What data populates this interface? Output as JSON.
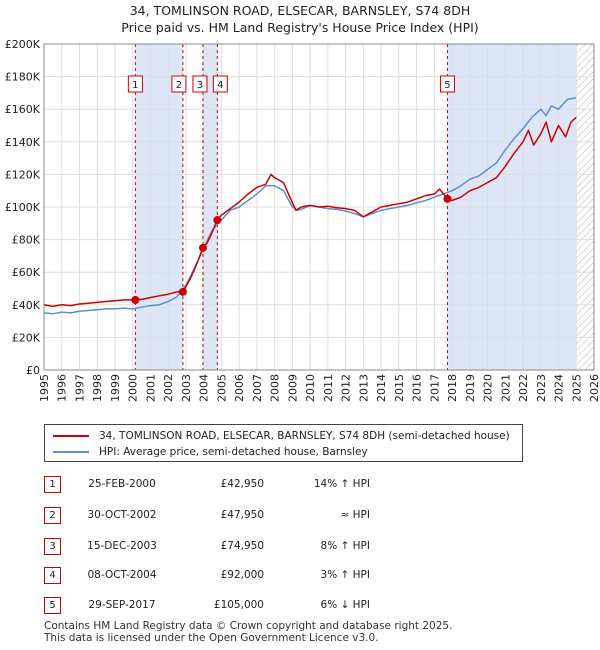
{
  "chart_data": {
    "type": "line",
    "title": "34, TOMLINSON ROAD, ELSECAR, BARNSLEY, S74 8DH",
    "subtitle": "Price paid vs. HM Land Registry's House Price Index (HPI)",
    "xlabel": "",
    "ylabel": "",
    "xlim": [
      1995,
      2026
    ],
    "ylim": [
      0,
      200000
    ],
    "x_ticks": [
      "1995",
      "1996",
      "1997",
      "1998",
      "1999",
      "2000",
      "2001",
      "2002",
      "2003",
      "2004",
      "2005",
      "2006",
      "2007",
      "2008",
      "2009",
      "2010",
      "2011",
      "2012",
      "2013",
      "2014",
      "2015",
      "2016",
      "2017",
      "2018",
      "2019",
      "2020",
      "2021",
      "2022",
      "2023",
      "2024",
      "2025",
      "2026"
    ],
    "y_ticks": [
      "£0",
      "£20K",
      "£40K",
      "£60K",
      "£80K",
      "£100K",
      "£120K",
      "£140K",
      "£160K",
      "£180K",
      "£200K"
    ],
    "grid": true,
    "hatched_future_from": 2025.0,
    "colors": {
      "property": "#cc0000",
      "hpi": "#5b8fd0",
      "band": "#dde6f7",
      "marker": "#cc0000"
    },
    "series": [
      {
        "name": "34, TOMLINSON ROAD, ELSECAR, BARNSLEY, S74 8DH (semi-detached house)",
        "x": [
          1995.0,
          1995.5,
          1996,
          1996.5,
          1997,
          1997.5,
          1998,
          1998.5,
          1999,
          1999.5,
          2000.15,
          2000.6,
          2001,
          2001.5,
          2002,
          2002.5,
          2002.83,
          2003.2,
          2003.5,
          2003.96,
          2004.2,
          2004.5,
          2004.77,
          2005.0,
          2005.5,
          2006,
          2006.5,
          2007,
          2007.5,
          2007.8,
          2008,
          2008.5,
          2008.9,
          2009.2,
          2009.5,
          2010,
          2010.5,
          2011,
          2011.5,
          2012,
          2012.5,
          2013,
          2013.5,
          2014,
          2014.5,
          2015,
          2015.5,
          2016,
          2016.5,
          2017,
          2017.3,
          2017.74,
          2018,
          2018.5,
          2019,
          2019.5,
          2020,
          2020.5,
          2021,
          2021.5,
          2022,
          2022.3,
          2022.6,
          2023,
          2023.3,
          2023.6,
          2024,
          2024.4,
          2024.7,
          2025.0
        ],
        "values": [
          40000,
          39000,
          40000,
          39500,
          40500,
          41000,
          41500,
          42000,
          42500,
          43000,
          42950,
          43500,
          44500,
          45500,
          46500,
          48000,
          47950,
          55000,
          62000,
          74950,
          78000,
          85000,
          92000,
          95000,
          99000,
          103000,
          108000,
          112000,
          114000,
          120000,
          118000,
          115000,
          105000,
          98000,
          100000,
          101000,
          100000,
          100500,
          99500,
          99000,
          98000,
          94000,
          97000,
          100000,
          101000,
          102000,
          103000,
          105000,
          107000,
          108000,
          111000,
          105000,
          104000,
          106000,
          110000,
          112000,
          115000,
          118000,
          125000,
          133000,
          140000,
          147000,
          138000,
          145000,
          152000,
          140000,
          150000,
          143000,
          152000,
          155000
        ]
      },
      {
        "name": "HPI: Average price, semi-detached house, Barnsley",
        "x": [
          1995.0,
          1995.5,
          1996,
          1996.5,
          1997,
          1997.5,
          1998,
          1998.5,
          1999,
          1999.5,
          2000,
          2000.5,
          2001,
          2001.5,
          2002,
          2002.5,
          2003,
          2003.5,
          2004,
          2004.5,
          2005,
          2005.5,
          2006,
          2006.5,
          2007,
          2007.5,
          2008,
          2008.5,
          2009,
          2009.3,
          2009.6,
          2010,
          2010.5,
          2011,
          2011.5,
          2012,
          2012.5,
          2013,
          2013.5,
          2014,
          2014.5,
          2015,
          2015.5,
          2016,
          2016.5,
          2017,
          2017.5,
          2018,
          2018.5,
          2019,
          2019.5,
          2020,
          2020.5,
          2021,
          2021.5,
          2022,
          2022.5,
          2023,
          2023.3,
          2023.6,
          2024,
          2024.5,
          2025.0
        ],
        "values": [
          35000,
          34500,
          35500,
          35000,
          36000,
          36500,
          37000,
          37500,
          37500,
          38000,
          37500,
          38500,
          39500,
          40000,
          42000,
          45000,
          52000,
          63000,
          75000,
          86000,
          92000,
          98000,
          100000,
          104000,
          108000,
          113000,
          113000,
          110000,
          100000,
          98000,
          99000,
          101000,
          100000,
          99000,
          98500,
          97500,
          96000,
          94000,
          96000,
          98000,
          99000,
          100000,
          101000,
          102500,
          104000,
          106000,
          108000,
          110000,
          113000,
          117000,
          119000,
          123000,
          127000,
          135000,
          142000,
          148000,
          155000,
          160000,
          156000,
          162000,
          160000,
          166000,
          167000
        ]
      }
    ],
    "sales": [
      {
        "label": "1",
        "x": 2000.15,
        "value": 42950
      },
      {
        "label": "2",
        "x": 2002.83,
        "value": 47950
      },
      {
        "label": "3",
        "x": 2003.96,
        "value": 74950
      },
      {
        "label": "4",
        "x": 2004.77,
        "value": 92000
      },
      {
        "label": "5",
        "x": 2017.74,
        "value": 105000
      }
    ]
  },
  "legend": [
    {
      "label": "34, TOMLINSON ROAD, ELSECAR, BARNSLEY, S74 8DH (semi-detached house)",
      "color": "#cc0000"
    },
    {
      "label": "HPI: Average price, semi-detached house, Barnsley",
      "color": "#5b8fd0"
    }
  ],
  "transactions": [
    {
      "num": "1",
      "date": "25-FEB-2000",
      "price": "£42,950",
      "hpi": "14% ↑ HPI"
    },
    {
      "num": "2",
      "date": "30-OCT-2002",
      "price": "£47,950",
      "hpi": "≈ HPI"
    },
    {
      "num": "3",
      "date": "15-DEC-2003",
      "price": "£74,950",
      "hpi": "8% ↑ HPI"
    },
    {
      "num": "4",
      "date": "08-OCT-2004",
      "price": "£92,000",
      "hpi": "3% ↑ HPI"
    },
    {
      "num": "5",
      "date": "29-SEP-2017",
      "price": "£105,000",
      "hpi": "6% ↓ HPI"
    }
  ],
  "footer": {
    "line1": "Contains HM Land Registry data © Crown copyright and database right 2025.",
    "line2": "This data is licensed under the Open Government Licence v3.0."
  }
}
